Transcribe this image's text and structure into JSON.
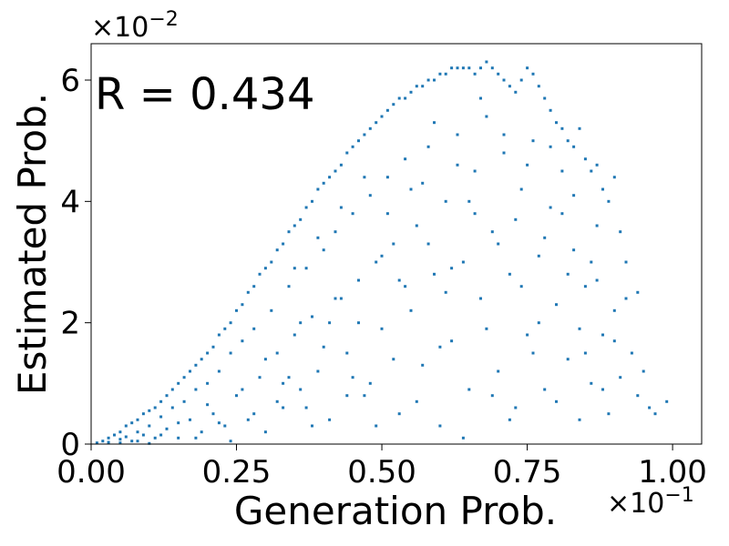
{
  "chart_data": {
    "type": "scatter",
    "title": "",
    "xlabel": "Generation Prob.",
    "ylabel": "Estimated Prob.",
    "annotation": "R = 0.434",
    "x_scale_label": "×10",
    "x_scale_exp": "−1",
    "y_scale_label": "×10",
    "y_scale_exp": "−2",
    "xlim": [
      0,
      1.05
    ],
    "ylim": [
      0,
      6.6
    ],
    "x_ticks": [
      0.0,
      0.25,
      0.5,
      0.75,
      1.0
    ],
    "x_tick_labels": [
      "0.00",
      "0.25",
      "0.50",
      "0.75",
      "1.00"
    ],
    "y_ticks": [
      0,
      2,
      4,
      6
    ],
    "y_tick_labels": [
      "0",
      "2",
      "4",
      "6"
    ],
    "grid": false,
    "marker_color": "#1f77b4",
    "series": [
      {
        "points": [
          [
            0.01,
            0.02
          ],
          [
            0.02,
            0.05
          ],
          [
            0.03,
            0.1
          ],
          [
            0.03,
            0.03
          ],
          [
            0.04,
            0.15
          ],
          [
            0.05,
            0.08
          ],
          [
            0.05,
            0.2
          ],
          [
            0.06,
            0.3
          ],
          [
            0.06,
            0.12
          ],
          [
            0.07,
            0.35
          ],
          [
            0.07,
            0.05
          ],
          [
            0.08,
            0.4
          ],
          [
            0.08,
            0.2
          ],
          [
            0.09,
            0.5
          ],
          [
            0.09,
            0.15
          ],
          [
            0.1,
            0.55
          ],
          [
            0.1,
            0.3
          ],
          [
            0.11,
            0.6
          ],
          [
            0.11,
            0.1
          ],
          [
            0.12,
            0.7
          ],
          [
            0.12,
            0.45
          ],
          [
            0.13,
            0.8
          ],
          [
            0.13,
            0.25
          ],
          [
            0.14,
            0.9
          ],
          [
            0.14,
            0.6
          ],
          [
            0.15,
            1.0
          ],
          [
            0.15,
            0.1
          ],
          [
            0.16,
            1.1
          ],
          [
            0.16,
            0.7
          ],
          [
            0.17,
            1.2
          ],
          [
            0.17,
            0.4
          ],
          [
            0.18,
            1.3
          ],
          [
            0.18,
            0.9
          ],
          [
            0.19,
            1.4
          ],
          [
            0.19,
            0.2
          ],
          [
            0.2,
            1.5
          ],
          [
            0.2,
            1.0
          ],
          [
            0.21,
            1.6
          ],
          [
            0.21,
            0.5
          ],
          [
            0.22,
            1.8
          ],
          [
            0.22,
            1.2
          ],
          [
            0.23,
            1.9
          ],
          [
            0.23,
            0.3
          ],
          [
            0.24,
            2.0
          ],
          [
            0.24,
            1.5
          ],
          [
            0.25,
            2.2
          ],
          [
            0.25,
            0.8
          ],
          [
            0.26,
            2.3
          ],
          [
            0.26,
            1.7
          ],
          [
            0.27,
            2.5
          ],
          [
            0.27,
            0.4
          ],
          [
            0.28,
            2.6
          ],
          [
            0.28,
            1.9
          ],
          [
            0.29,
            2.8
          ],
          [
            0.29,
            1.1
          ],
          [
            0.3,
            2.9
          ],
          [
            0.3,
            0.2
          ],
          [
            0.31,
            3.0
          ],
          [
            0.31,
            2.2
          ],
          [
            0.32,
            3.2
          ],
          [
            0.32,
            1.5
          ],
          [
            0.33,
            3.3
          ],
          [
            0.33,
            0.6
          ],
          [
            0.34,
            3.5
          ],
          [
            0.34,
            2.6
          ],
          [
            0.35,
            3.6
          ],
          [
            0.35,
            1.8
          ],
          [
            0.36,
            3.7
          ],
          [
            0.36,
            0.9
          ],
          [
            0.37,
            3.9
          ],
          [
            0.37,
            2.9
          ],
          [
            0.38,
            4.0
          ],
          [
            0.38,
            2.1
          ],
          [
            0.39,
            4.2
          ],
          [
            0.39,
            1.2
          ],
          [
            0.4,
            4.3
          ],
          [
            0.4,
            3.2
          ],
          [
            0.41,
            4.4
          ],
          [
            0.41,
            0.4
          ],
          [
            0.42,
            4.5
          ],
          [
            0.42,
            3.5
          ],
          [
            0.43,
            4.6
          ],
          [
            0.43,
            2.4
          ],
          [
            0.44,
            4.8
          ],
          [
            0.44,
            1.5
          ],
          [
            0.45,
            4.9
          ],
          [
            0.45,
            3.8
          ],
          [
            0.46,
            5.0
          ],
          [
            0.46,
            2.7
          ],
          [
            0.47,
            5.1
          ],
          [
            0.47,
            0.8
          ],
          [
            0.48,
            5.2
          ],
          [
            0.48,
            4.1
          ],
          [
            0.49,
            5.3
          ],
          [
            0.49,
            3.0
          ],
          [
            0.5,
            5.4
          ],
          [
            0.5,
            1.9
          ],
          [
            0.51,
            5.5
          ],
          [
            0.51,
            4.4
          ],
          [
            0.52,
            5.6
          ],
          [
            0.52,
            3.3
          ],
          [
            0.53,
            5.7
          ],
          [
            0.53,
            0.5
          ],
          [
            0.54,
            5.7
          ],
          [
            0.54,
            4.7
          ],
          [
            0.55,
            5.8
          ],
          [
            0.55,
            2.2
          ],
          [
            0.56,
            5.9
          ],
          [
            0.56,
            3.6
          ],
          [
            0.57,
            5.9
          ],
          [
            0.57,
            1.3
          ],
          [
            0.58,
            6.0
          ],
          [
            0.58,
            4.9
          ],
          [
            0.59,
            6.0
          ],
          [
            0.59,
            2.8
          ],
          [
            0.6,
            6.1
          ],
          [
            0.6,
            0.3
          ],
          [
            0.61,
            6.1
          ],
          [
            0.61,
            4.0
          ],
          [
            0.62,
            6.2
          ],
          [
            0.62,
            1.7
          ],
          [
            0.63,
            6.2
          ],
          [
            0.63,
            5.1
          ],
          [
            0.64,
            6.2
          ],
          [
            0.64,
            3.0
          ],
          [
            0.65,
            6.2
          ],
          [
            0.65,
            0.9
          ],
          [
            0.66,
            6.1
          ],
          [
            0.66,
            4.5
          ],
          [
            0.67,
            6.2
          ],
          [
            0.67,
            2.4
          ],
          [
            0.68,
            6.3
          ],
          [
            0.68,
            5.4
          ],
          [
            0.69,
            6.2
          ],
          [
            0.69,
            3.5
          ],
          [
            0.7,
            6.1
          ],
          [
            0.7,
            1.2
          ],
          [
            0.71,
            6.0
          ],
          [
            0.71,
            4.8
          ],
          [
            0.72,
            5.9
          ],
          [
            0.72,
            2.8
          ],
          [
            0.73,
            5.8
          ],
          [
            0.73,
            0.6
          ],
          [
            0.74,
            6.0
          ],
          [
            0.74,
            4.2
          ],
          [
            0.75,
            6.2
          ],
          [
            0.75,
            1.8
          ],
          [
            0.76,
            6.1
          ],
          [
            0.76,
            5.0
          ],
          [
            0.77,
            5.9
          ],
          [
            0.77,
            3.1
          ],
          [
            0.78,
            5.7
          ],
          [
            0.78,
            0.9
          ],
          [
            0.79,
            5.5
          ],
          [
            0.79,
            3.9
          ],
          [
            0.8,
            5.3
          ],
          [
            0.8,
            2.3
          ],
          [
            0.81,
            5.2
          ],
          [
            0.81,
            4.5
          ],
          [
            0.82,
            5.0
          ],
          [
            0.82,
            1.4
          ],
          [
            0.83,
            4.9
          ],
          [
            0.83,
            3.2
          ],
          [
            0.84,
            5.2
          ],
          [
            0.84,
            0.4
          ],
          [
            0.85,
            4.7
          ],
          [
            0.85,
            2.6
          ],
          [
            0.86,
            4.5
          ],
          [
            0.86,
            1.0
          ],
          [
            0.87,
            4.6
          ],
          [
            0.87,
            3.6
          ],
          [
            0.88,
            4.2
          ],
          [
            0.88,
            1.8
          ],
          [
            0.89,
            4.0
          ],
          [
            0.89,
            0.5
          ],
          [
            0.9,
            4.4
          ],
          [
            0.9,
            2.2
          ],
          [
            0.91,
            3.5
          ],
          [
            0.91,
            1.1
          ],
          [
            0.92,
            3.0
          ],
          [
            0.92,
            2.4
          ],
          [
            0.93,
            1.5
          ],
          [
            0.94,
            2.5
          ],
          [
            0.94,
            0.8
          ],
          [
            0.95,
            1.2
          ],
          [
            0.96,
            0.6
          ],
          [
            0.97,
            0.5
          ],
          [
            0.99,
            0.7
          ],
          [
            0.05,
            0.02
          ],
          [
            0.08,
            0.05
          ],
          [
            0.1,
            0.01
          ],
          [
            0.12,
            0.15
          ],
          [
            0.15,
            0.35
          ],
          [
            0.18,
            0.1
          ],
          [
            0.2,
            0.65
          ],
          [
            0.22,
            0.35
          ],
          [
            0.24,
            0.05
          ],
          [
            0.26,
            0.9
          ],
          [
            0.28,
            0.5
          ],
          [
            0.3,
            1.4
          ],
          [
            0.32,
            0.7
          ],
          [
            0.34,
            1.1
          ],
          [
            0.36,
            2.0
          ],
          [
            0.38,
            0.3
          ],
          [
            0.4,
            1.6
          ],
          [
            0.42,
            2.4
          ],
          [
            0.44,
            0.8
          ],
          [
            0.46,
            2.0
          ],
          [
            0.48,
            1.0
          ],
          [
            0.5,
            3.1
          ],
          [
            0.52,
            1.4
          ],
          [
            0.54,
            2.6
          ],
          [
            0.56,
            0.7
          ],
          [
            0.58,
            3.3
          ],
          [
            0.6,
            1.6
          ],
          [
            0.62,
            2.9
          ],
          [
            0.64,
            0.1
          ],
          [
            0.66,
            3.8
          ],
          [
            0.68,
            1.9
          ],
          [
            0.7,
            3.3
          ],
          [
            0.72,
            0.4
          ],
          [
            0.74,
            2.6
          ],
          [
            0.76,
            1.5
          ],
          [
            0.78,
            3.4
          ],
          [
            0.8,
            0.7
          ],
          [
            0.82,
            2.8
          ],
          [
            0.84,
            1.9
          ],
          [
            0.86,
            3.0
          ],
          [
            0.88,
            0.9
          ],
          [
            0.9,
            1.7
          ],
          [
            0.33,
            1.0
          ],
          [
            0.37,
            0.6
          ],
          [
            0.41,
            2.0
          ],
          [
            0.45,
            1.1
          ],
          [
            0.49,
            0.3
          ],
          [
            0.53,
            2.7
          ],
          [
            0.57,
            4.3
          ],
          [
            0.61,
            2.5
          ],
          [
            0.65,
            4.0
          ],
          [
            0.69,
            0.8
          ],
          [
            0.73,
            3.7
          ],
          [
            0.77,
            2.0
          ],
          [
            0.81,
            3.8
          ],
          [
            0.85,
            1.5
          ],
          [
            0.35,
            2.9
          ],
          [
            0.39,
            3.4
          ],
          [
            0.43,
            3.9
          ],
          [
            0.47,
            4.4
          ],
          [
            0.51,
            3.8
          ],
          [
            0.55,
            4.2
          ],
          [
            0.59,
            5.3
          ],
          [
            0.63,
            4.6
          ],
          [
            0.67,
            5.7
          ],
          [
            0.71,
            5.1
          ],
          [
            0.75,
            4.6
          ],
          [
            0.79,
            4.9
          ],
          [
            0.83,
            4.1
          ],
          [
            0.87,
            2.7
          ]
        ]
      }
    ]
  }
}
